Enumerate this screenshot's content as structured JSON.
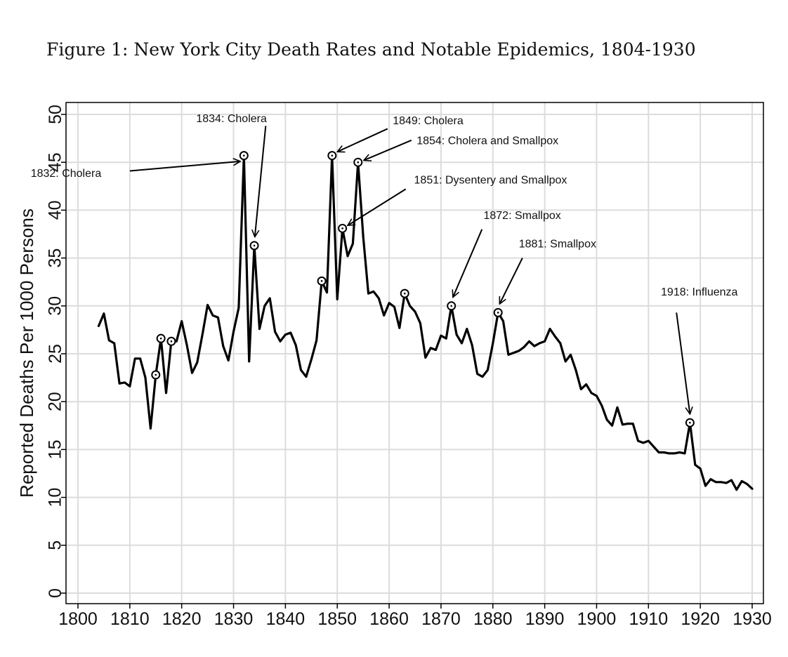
{
  "caption": "Figure 1: New York City Death Rates and Notable Epidemics, 1804-1930",
  "chart_data": {
    "type": "line",
    "ylabel": "Reported Deaths Per 1000 Persons",
    "xlim": [
      1800,
      1930
    ],
    "ylim": [
      0,
      50
    ],
    "x_ticks": [
      1800,
      1810,
      1820,
      1830,
      1840,
      1850,
      1860,
      1870,
      1880,
      1890,
      1900,
      1910,
      1920,
      1930
    ],
    "y_ticks": [
      0,
      5,
      10,
      15,
      20,
      25,
      30,
      35,
      40,
      45,
      50
    ],
    "grid": true,
    "line_color": "#000000",
    "series": [
      {
        "x": [
          1804,
          1805,
          1806,
          1807,
          1808,
          1809,
          1810,
          1811,
          1812,
          1813,
          1814,
          1815,
          1816,
          1817,
          1818,
          1819,
          1820,
          1821,
          1822,
          1823,
          1824,
          1825,
          1826,
          1827,
          1828,
          1829,
          1830,
          1831,
          1832,
          1833,
          1834,
          1835,
          1836,
          1837,
          1838,
          1839,
          1840,
          1841,
          1842,
          1843,
          1844,
          1845,
          1846,
          1847,
          1848,
          1849,
          1850,
          1851,
          1852,
          1853,
          1854,
          1855,
          1856,
          1857,
          1858,
          1859,
          1860,
          1861,
          1862,
          1863,
          1864,
          1865,
          1866,
          1867,
          1868,
          1869,
          1870,
          1871,
          1872,
          1873,
          1874,
          1875,
          1876,
          1877,
          1878,
          1879,
          1880,
          1881,
          1882,
          1883,
          1884,
          1885,
          1886,
          1887,
          1888,
          1889,
          1890,
          1891,
          1892,
          1893,
          1894,
          1895,
          1896,
          1897,
          1898,
          1899,
          1900,
          1901,
          1902,
          1903,
          1904,
          1905,
          1906,
          1907,
          1908,
          1909,
          1910,
          1911,
          1912,
          1913,
          1914,
          1915,
          1916,
          1917,
          1918,
          1919,
          1920,
          1921,
          1922,
          1923,
          1924,
          1925,
          1926,
          1927,
          1928,
          1929,
          1930
        ],
        "y": [
          27.9,
          29.2,
          26.4,
          26.1,
          21.9,
          22.0,
          21.6,
          24.5,
          24.5,
          22.5,
          17.2,
          22.8,
          26.6,
          20.9,
          26.3,
          26.3,
          28.4,
          25.9,
          23.0,
          24.1,
          27.0,
          30.1,
          29.0,
          28.8,
          25.8,
          24.3,
          27.3,
          29.8,
          45.7,
          24.2,
          36.3,
          27.6,
          30.0,
          30.8,
          27.3,
          26.3,
          27.0,
          27.2,
          25.9,
          23.3,
          22.6,
          24.4,
          26.4,
          32.6,
          31.4,
          45.7,
          30.7,
          38.1,
          35.2,
          36.5,
          45.0,
          37.2,
          31.3,
          31.5,
          30.8,
          29.0,
          30.3,
          29.9,
          27.7,
          31.3,
          30.0,
          29.4,
          28.2,
          24.6,
          25.6,
          25.4,
          26.9,
          26.6,
          30.0,
          27.0,
          26.1,
          27.6,
          25.9,
          22.9,
          22.6,
          23.3,
          26.1,
          29.3,
          28.4,
          24.9,
          25.1,
          25.3,
          25.7,
          26.3,
          25.8,
          26.1,
          26.3,
          27.6,
          26.8,
          26.1,
          24.2,
          24.9,
          23.3,
          21.3,
          21.8,
          20.9,
          20.6,
          19.6,
          18.1,
          17.5,
          19.4,
          17.6,
          17.7,
          17.7,
          15.9,
          15.7,
          15.9,
          15.3,
          14.7,
          14.7,
          14.6,
          14.6,
          14.7,
          14.6,
          17.8,
          13.4,
          13.0,
          11.2,
          11.9,
          11.6,
          11.6,
          11.5,
          11.8,
          10.8,
          11.7,
          11.4,
          10.9
        ]
      }
    ],
    "highlighted_points": [
      [
        1815,
        22.8
      ],
      [
        1816,
        26.6
      ],
      [
        1818,
        26.3
      ],
      [
        1832,
        45.7
      ],
      [
        1834,
        36.3
      ],
      [
        1847,
        32.6
      ],
      [
        1849,
        45.7
      ],
      [
        1851,
        38.1
      ],
      [
        1854,
        45.0
      ],
      [
        1863,
        31.3
      ],
      [
        1872,
        30.0
      ],
      [
        1881,
        29.3
      ],
      [
        1918,
        17.8
      ]
    ],
    "annotations": [
      {
        "text": "1832: Cholera",
        "label_x": 1804.5,
        "label_y": 43.9,
        "anchor": "end",
        "arrow_from": [
          1810.0,
          44.1
        ],
        "arrow_to": [
          1831.3,
          45.1
        ]
      },
      {
        "text": "1834: Cholera",
        "label_x": 1822.8,
        "label_y": 49.6,
        "anchor": "start",
        "arrow_from": [
          1836.2,
          48.8
        ],
        "arrow_to": [
          1834.1,
          37.2
        ]
      },
      {
        "text": "1849: Cholera",
        "label_x": 1860.7,
        "label_y": 49.4,
        "anchor": "start",
        "arrow_from": [
          1859.7,
          48.5
        ],
        "arrow_to": [
          1850.0,
          46.1
        ]
      },
      {
        "text": "1854: Cholera and Smallpox",
        "label_x": 1865.3,
        "label_y": 47.3,
        "anchor": "start",
        "arrow_from": [
          1864.3,
          47.3
        ],
        "arrow_to": [
          1855.1,
          45.2
        ]
      },
      {
        "text": "1851: Dysentery and Smallpox",
        "label_x": 1864.8,
        "label_y": 43.2,
        "anchor": "start",
        "arrow_from": [
          1863.2,
          42.2
        ],
        "arrow_to": [
          1852.0,
          38.4
        ]
      },
      {
        "text": "1872: Smallpox",
        "label_x": 1878.2,
        "label_y": 39.5,
        "anchor": "start",
        "arrow_from": [
          1877.9,
          38.0
        ],
        "arrow_to": [
          1872.3,
          30.9
        ]
      },
      {
        "text": "1881: Smallpox",
        "label_x": 1885.0,
        "label_y": 36.5,
        "anchor": "start",
        "arrow_from": [
          1885.7,
          35.0
        ],
        "arrow_to": [
          1881.3,
          30.2
        ]
      },
      {
        "text": "1918: Influenza",
        "label_x": 1912.4,
        "label_y": 31.5,
        "anchor": "start",
        "arrow_from": [
          1915.4,
          29.3
        ],
        "arrow_to": [
          1918.0,
          18.7
        ]
      }
    ]
  }
}
